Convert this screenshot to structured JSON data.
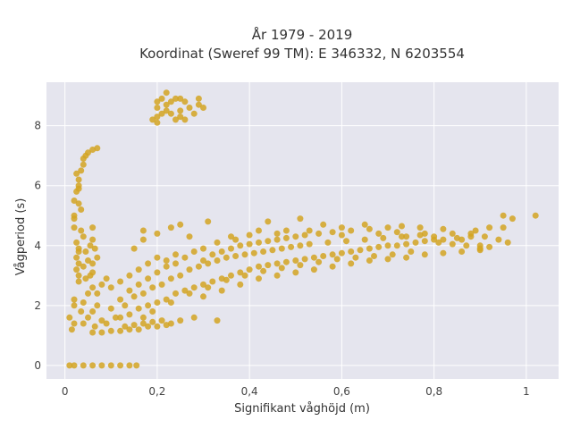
{
  "chart_data": {
    "type": "scatter",
    "title_line1": "År 1979 - 2019",
    "title_line2": "Koordinat (Sweref 99 TM): E 346332, N 6203554",
    "xlabel": "Signifikant våghöjd (m)",
    "ylabel": "Vågperiod (s)",
    "xlim": [
      -0.04,
      1.07
    ],
    "ylim": [
      -0.45,
      9.45
    ],
    "xticks": [
      0,
      0.2,
      0.4,
      0.6,
      0.8,
      1
    ],
    "xtick_labels": [
      "0",
      "0,2",
      "0,4",
      "0,6",
      "0,8",
      "1"
    ],
    "yticks": [
      0,
      2,
      4,
      6,
      8
    ],
    "ytick_labels": [
      "0",
      "2",
      "4",
      "6",
      "8"
    ],
    "grid": true,
    "background_color": "#e5e5ee",
    "marker_color": "#d4a422",
    "series": [
      {
        "name": "",
        "points": [
          [
            0.01,
            0
          ],
          [
            0.02,
            0
          ],
          [
            0.04,
            0
          ],
          [
            0.06,
            0
          ],
          [
            0.08,
            0
          ],
          [
            0.1,
            0
          ],
          [
            0.12,
            0
          ],
          [
            0.14,
            0
          ],
          [
            0.155,
            0
          ],
          [
            0.01,
            1.6
          ],
          [
            0.015,
            1.2
          ],
          [
            0.02,
            1.4
          ],
          [
            0.02,
            2.0
          ],
          [
            0.02,
            2.2
          ],
          [
            0.02,
            4.6
          ],
          [
            0.02,
            4.9
          ],
          [
            0.02,
            5.0
          ],
          [
            0.025,
            3.2
          ],
          [
            0.025,
            3.6
          ],
          [
            0.025,
            4.1
          ],
          [
            0.03,
            2.8
          ],
          [
            0.03,
            3.0
          ],
          [
            0.03,
            3.4
          ],
          [
            0.03,
            3.8
          ],
          [
            0.03,
            3.9
          ],
          [
            0.02,
            5.5
          ],
          [
            0.025,
            5.8
          ],
          [
            0.03,
            5.4
          ],
          [
            0.03,
            5.9
          ],
          [
            0.03,
            6.0
          ],
          [
            0.025,
            6.4
          ],
          [
            0.03,
            6.2
          ],
          [
            0.035,
            5.2
          ],
          [
            0.035,
            6.5
          ],
          [
            0.04,
            6.7
          ],
          [
            0.04,
            6.9
          ],
          [
            0.045,
            7.0
          ],
          [
            0.05,
            7.1
          ],
          [
            0.06,
            7.2
          ],
          [
            0.07,
            7.25
          ],
          [
            0.035,
            4.5
          ],
          [
            0.04,
            4.3
          ],
          [
            0.045,
            3.8
          ],
          [
            0.05,
            3.5
          ],
          [
            0.055,
            3.0
          ],
          [
            0.06,
            3.1
          ],
          [
            0.055,
            4.0
          ],
          [
            0.04,
            3.3
          ],
          [
            0.06,
            2.6
          ],
          [
            0.045,
            2.9
          ],
          [
            0.06,
            3.4
          ],
          [
            0.06,
            1.1
          ],
          [
            0.08,
            1.1
          ],
          [
            0.1,
            1.15
          ],
          [
            0.12,
            1.15
          ],
          [
            0.14,
            1.2
          ],
          [
            0.16,
            1.2
          ],
          [
            0.18,
            1.3
          ],
          [
            0.2,
            1.3
          ],
          [
            0.22,
            1.35
          ],
          [
            0.07,
            2.4
          ],
          [
            0.08,
            2.7
          ],
          [
            0.09,
            2.9
          ],
          [
            0.05,
            1.6
          ],
          [
            0.06,
            1.8
          ],
          [
            0.07,
            2.0
          ],
          [
            0.08,
            1.5
          ],
          [
            0.1,
            1.9
          ],
          [
            0.12,
            2.2
          ],
          [
            0.14,
            2.5
          ],
          [
            0.16,
            2.7
          ],
          [
            0.18,
            2.9
          ],
          [
            0.2,
            3.1
          ],
          [
            0.22,
            3.3
          ],
          [
            0.24,
            3.4
          ],
          [
            0.26,
            3.6
          ],
          [
            0.28,
            3.8
          ],
          [
            0.3,
            3.9
          ],
          [
            0.1,
            2.6
          ],
          [
            0.12,
            2.8
          ],
          [
            0.14,
            3.0
          ],
          [
            0.16,
            3.2
          ],
          [
            0.18,
            3.4
          ],
          [
            0.2,
            3.6
          ],
          [
            0.12,
            1.6
          ],
          [
            0.14,
            1.7
          ],
          [
            0.16,
            1.9
          ],
          [
            0.18,
            2.0
          ],
          [
            0.2,
            2.1
          ],
          [
            0.22,
            2.2
          ],
          [
            0.24,
            2.4
          ],
          [
            0.26,
            2.5
          ],
          [
            0.28,
            2.6
          ],
          [
            0.3,
            2.7
          ],
          [
            0.32,
            2.8
          ],
          [
            0.34,
            2.9
          ],
          [
            0.36,
            3.0
          ],
          [
            0.38,
            3.1
          ],
          [
            0.4,
            3.2
          ],
          [
            0.42,
            3.3
          ],
          [
            0.44,
            3.35
          ],
          [
            0.46,
            3.4
          ],
          [
            0.48,
            3.45
          ],
          [
            0.5,
            3.5
          ],
          [
            0.52,
            3.55
          ],
          [
            0.54,
            3.6
          ],
          [
            0.56,
            3.65
          ],
          [
            0.58,
            3.7
          ],
          [
            0.6,
            3.75
          ],
          [
            0.62,
            3.8
          ],
          [
            0.64,
            3.85
          ],
          [
            0.66,
            3.9
          ],
          [
            0.68,
            3.95
          ],
          [
            0.7,
            4.0
          ],
          [
            0.72,
            4.0
          ],
          [
            0.74,
            4.05
          ],
          [
            0.76,
            4.1
          ],
          [
            0.78,
            4.15
          ],
          [
            0.8,
            4.2
          ],
          [
            0.82,
            4.2
          ],
          [
            0.85,
            4.25
          ],
          [
            0.88,
            4.3
          ],
          [
            0.3,
            3.5
          ],
          [
            0.32,
            3.7
          ],
          [
            0.34,
            3.8
          ],
          [
            0.36,
            3.9
          ],
          [
            0.38,
            4.0
          ],
          [
            0.4,
            4.05
          ],
          [
            0.42,
            4.1
          ],
          [
            0.44,
            4.15
          ],
          [
            0.46,
            4.2
          ],
          [
            0.48,
            4.25
          ],
          [
            0.5,
            4.3
          ],
          [
            0.52,
            4.35
          ],
          [
            0.55,
            4.4
          ],
          [
            0.58,
            4.45
          ],
          [
            0.62,
            4.5
          ],
          [
            0.66,
            4.55
          ],
          [
            0.7,
            4.6
          ],
          [
            0.3,
            2.3
          ],
          [
            0.34,
            2.5
          ],
          [
            0.38,
            2.7
          ],
          [
            0.42,
            2.9
          ],
          [
            0.46,
            3.0
          ],
          [
            0.5,
            3.1
          ],
          [
            0.54,
            3.2
          ],
          [
            0.58,
            3.3
          ],
          [
            0.62,
            3.4
          ],
          [
            0.66,
            3.5
          ],
          [
            0.7,
            3.55
          ],
          [
            0.74,
            3.6
          ],
          [
            0.78,
            3.7
          ],
          [
            0.82,
            3.75
          ],
          [
            0.86,
            3.8
          ],
          [
            0.9,
            3.85
          ],
          [
            0.13,
            1.3
          ],
          [
            0.15,
            1.35
          ],
          [
            0.17,
            1.4
          ],
          [
            0.19,
            1.45
          ],
          [
            0.21,
            1.5
          ],
          [
            0.23,
            1.4
          ],
          [
            0.25,
            1.5
          ],
          [
            0.28,
            1.6
          ],
          [
            0.33,
            1.5
          ],
          [
            0.36,
            4.3
          ],
          [
            0.42,
            4.5
          ],
          [
            0.48,
            4.5
          ],
          [
            0.56,
            4.7
          ],
          [
            0.6,
            4.6
          ],
          [
            0.65,
            4.7
          ],
          [
            0.72,
            4.45
          ],
          [
            0.78,
            4.4
          ],
          [
            0.9,
            4.0
          ],
          [
            0.92,
            4.6
          ],
          [
            0.95,
            5.0
          ],
          [
            0.97,
            4.9
          ],
          [
            1.02,
            5.0
          ],
          [
            0.94,
            4.2
          ],
          [
            0.96,
            4.1
          ],
          [
            0.17,
            4.5
          ],
          [
            0.2,
            4.4
          ],
          [
            0.23,
            4.6
          ],
          [
            0.25,
            4.7
          ],
          [
            0.44,
            4.8
          ],
          [
            0.51,
            4.9
          ],
          [
            0.31,
            4.8
          ],
          [
            0.27,
            4.3
          ],
          [
            0.15,
            3.9
          ],
          [
            0.17,
            4.2
          ],
          [
            0.19,
            8.2
          ],
          [
            0.2,
            8.3
          ],
          [
            0.2,
            8.6
          ],
          [
            0.2,
            8.8
          ],
          [
            0.21,
            8.9
          ],
          [
            0.22,
            8.5
          ],
          [
            0.22,
            8.7
          ],
          [
            0.23,
            8.4
          ],
          [
            0.23,
            8.8
          ],
          [
            0.24,
            8.2
          ],
          [
            0.25,
            8.3
          ],
          [
            0.25,
            8.5
          ],
          [
            0.25,
            8.9
          ],
          [
            0.26,
            8.2
          ],
          [
            0.27,
            8.6
          ],
          [
            0.28,
            8.4
          ],
          [
            0.29,
            8.9
          ],
          [
            0.29,
            8.7
          ],
          [
            0.3,
            8.6
          ],
          [
            0.22,
            9.1
          ],
          [
            0.24,
            8.9
          ],
          [
            0.26,
            8.8
          ],
          [
            0.21,
            8.4
          ],
          [
            0.2,
            8.1
          ],
          [
            0.06,
            4.2
          ],
          [
            0.06,
            4.6
          ],
          [
            0.065,
            3.9
          ],
          [
            0.07,
            3.6
          ],
          [
            0.04,
            2.1
          ],
          [
            0.05,
            2.4
          ],
          [
            0.035,
            1.8
          ],
          [
            0.04,
            1.4
          ],
          [
            0.065,
            1.3
          ],
          [
            0.09,
            1.4
          ],
          [
            0.11,
            1.6
          ],
          [
            0.13,
            2.0
          ],
          [
            0.15,
            2.3
          ],
          [
            0.17,
            2.4
          ],
          [
            0.19,
            2.6
          ],
          [
            0.21,
            2.7
          ],
          [
            0.23,
            2.9
          ],
          [
            0.25,
            3.0
          ],
          [
            0.27,
            3.2
          ],
          [
            0.29,
            3.3
          ],
          [
            0.31,
            3.4
          ],
          [
            0.33,
            3.5
          ],
          [
            0.35,
            3.6
          ],
          [
            0.37,
            3.65
          ],
          [
            0.39,
            3.7
          ],
          [
            0.41,
            3.75
          ],
          [
            0.43,
            3.8
          ],
          [
            0.45,
            3.85
          ],
          [
            0.47,
            3.9
          ],
          [
            0.49,
            3.95
          ],
          [
            0.51,
            4.0
          ],
          [
            0.53,
            4.05
          ],
          [
            0.57,
            4.1
          ],
          [
            0.61,
            4.15
          ],
          [
            0.65,
            4.2
          ],
          [
            0.69,
            4.25
          ],
          [
            0.73,
            4.3
          ],
          [
            0.77,
            4.35
          ],
          [
            0.81,
            4.1
          ],
          [
            0.84,
            4.05
          ],
          [
            0.87,
            4.0
          ],
          [
            0.9,
            3.9
          ],
          [
            0.92,
            3.95
          ],
          [
            0.75,
            3.8
          ],
          [
            0.71,
            3.7
          ],
          [
            0.67,
            3.65
          ],
          [
            0.63,
            3.6
          ],
          [
            0.59,
            3.55
          ],
          [
            0.55,
            3.45
          ],
          [
            0.51,
            3.35
          ],
          [
            0.47,
            3.25
          ],
          [
            0.43,
            3.15
          ],
          [
            0.39,
            3.0
          ],
          [
            0.35,
            2.85
          ],
          [
            0.31,
            2.6
          ],
          [
            0.27,
            2.4
          ],
          [
            0.23,
            2.1
          ],
          [
            0.19,
            1.8
          ],
          [
            0.17,
            1.6
          ],
          [
            0.24,
            3.7
          ],
          [
            0.22,
            3.5
          ],
          [
            0.33,
            4.1
          ],
          [
            0.37,
            4.2
          ],
          [
            0.4,
            4.35
          ],
          [
            0.46,
            4.4
          ],
          [
            0.53,
            4.5
          ],
          [
            0.6,
            4.35
          ],
          [
            0.68,
            4.4
          ],
          [
            0.74,
            4.3
          ],
          [
            0.8,
            4.3
          ],
          [
            0.86,
            4.2
          ],
          [
            0.88,
            4.4
          ],
          [
            0.91,
            4.3
          ],
          [
            0.95,
            4.6
          ],
          [
            0.89,
            4.5
          ],
          [
            0.84,
            4.4
          ],
          [
            0.82,
            4.55
          ],
          [
            0.77,
            4.6
          ],
          [
            0.73,
            4.65
          ]
        ]
      }
    ]
  }
}
